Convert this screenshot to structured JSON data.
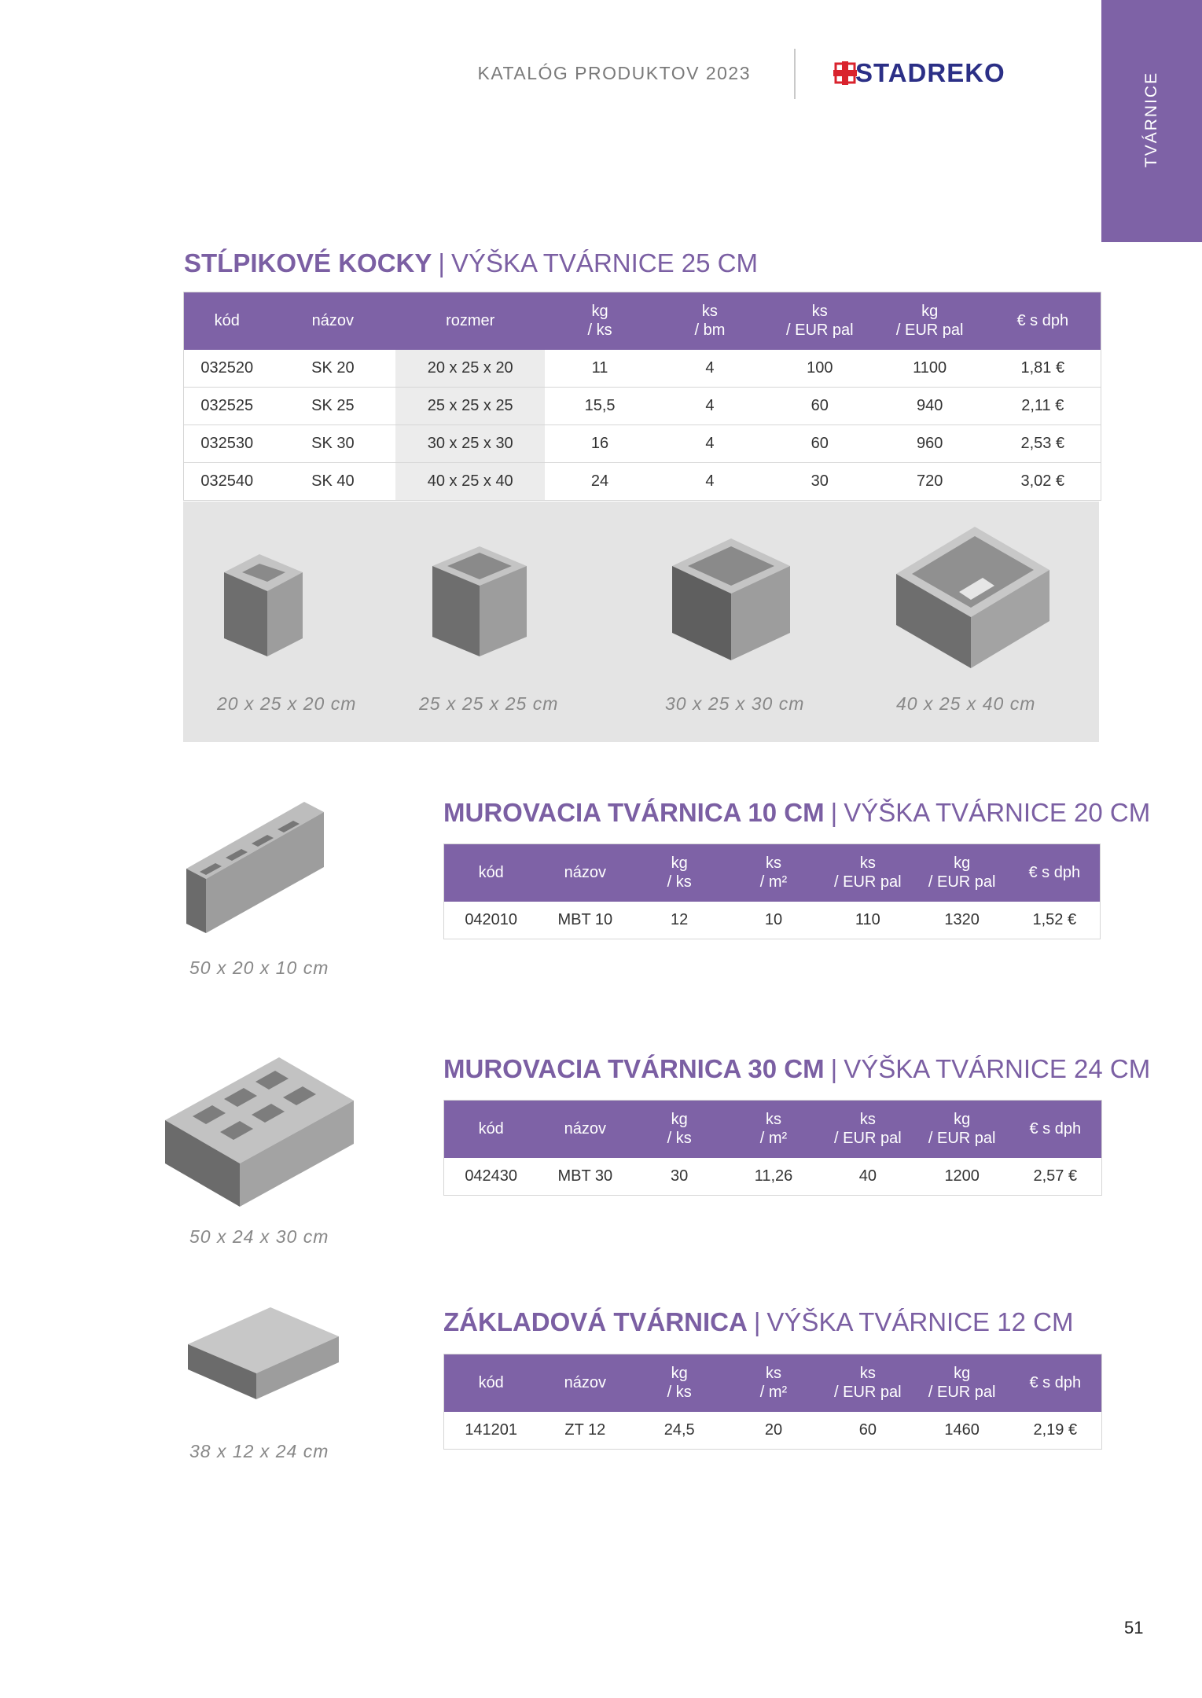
{
  "header": {
    "catalog_title": "KATALÓG PRODUKTOV 2023",
    "logo_text": "STADREKO",
    "side_tab": "TVÁRNICE"
  },
  "colors": {
    "accent": "#7e62a6",
    "logo": "#2b2f86",
    "logo_mark": "#d9232d",
    "shade": "#ececec",
    "band": "#e4e4e4"
  },
  "section1": {
    "title": "STĹPIKOVÉ KOCKY",
    "subtitle": "VÝŠKA TVÁRNICE 25 CM",
    "headers": {
      "kod": "kód",
      "nazov": "názov",
      "rozmer": "rozmer",
      "kg_ks": [
        "kg",
        "/ ks"
      ],
      "ks_bm": [
        "ks",
        "/ bm"
      ],
      "ks_pal": [
        "ks",
        "/ EUR pal"
      ],
      "kg_pal": [
        "kg",
        "/ EUR pal"
      ],
      "price": "€ s dph"
    },
    "rows": [
      [
        "032520",
        "SK 20",
        "20 x 25 x 20",
        "11",
        "4",
        "100",
        "1100",
        "1,81 €"
      ],
      [
        "032525",
        "SK 25",
        "25 x 25 x 25",
        "15,5",
        "4",
        "60",
        "940",
        "2,11 €"
      ],
      [
        "032530",
        "SK 30",
        "30 x 25 x 30",
        "16",
        "4",
        "60",
        "960",
        "2,53 €"
      ],
      [
        "032540",
        "SK 40",
        "40 x 25 x 40",
        "24",
        "4",
        "30",
        "720",
        "3,02 €"
      ]
    ],
    "images": [
      {
        "icon": "hollow-block-small-icon",
        "label": "20 x 25 x 20 cm"
      },
      {
        "icon": "hollow-block-medium-icon",
        "label": "25 x 25 x 25 cm"
      },
      {
        "icon": "hollow-block-large-icon",
        "label": "30 x 25 x 30 cm"
      },
      {
        "icon": "hollow-block-xlarge-icon",
        "label": "40 x 25 x 40 cm"
      }
    ]
  },
  "section2": {
    "title": "MUROVACIA TVÁRNICA 10 CM",
    "subtitle": "VÝŠKA TVÁRNICE 20 CM",
    "dimension": "50 x 20 x 10 cm",
    "headers": {
      "kod": "kód",
      "nazov": "názov",
      "kg_ks": [
        "kg",
        "/ ks"
      ],
      "ks_m2": [
        "ks",
        "/ m²"
      ],
      "ks_pal": [
        "ks",
        "/ EUR pal"
      ],
      "kg_pal": [
        "kg",
        "/ EUR pal"
      ],
      "price": "€ s dph"
    },
    "rows": [
      [
        "042010",
        "MBT 10",
        "12",
        "10",
        "110",
        "1320",
        "1,52 €"
      ]
    ]
  },
  "section3": {
    "title": "MUROVACIA TVÁRNICA 30 CM",
    "subtitle": "VÝŠKA TVÁRNICE 24 CM",
    "dimension": "50 x 24 x 30 cm",
    "headers": {
      "kod": "kód",
      "nazov": "názov",
      "kg_ks": [
        "kg",
        "/ ks"
      ],
      "ks_m2": [
        "ks",
        "/ m²"
      ],
      "ks_pal": [
        "ks",
        "/ EUR pal"
      ],
      "kg_pal": [
        "kg",
        "/ EUR pal"
      ],
      "price": "€ s dph"
    },
    "rows": [
      [
        "042430",
        "MBT 30",
        "30",
        "11,26",
        "40",
        "1200",
        "2,57 €"
      ]
    ]
  },
  "section4": {
    "title": "ZÁKLADOVÁ TVÁRNICA",
    "subtitle": "VÝŠKA TVÁRNICE 12 CM",
    "dimension": "38 x 12 x 24 cm",
    "headers": {
      "kod": "kód",
      "nazov": "názov",
      "kg_ks": [
        "kg",
        "/ ks"
      ],
      "ks_m2": [
        "ks",
        "/ m²"
      ],
      "ks_pal": [
        "ks",
        "/ EUR pal"
      ],
      "kg_pal": [
        "kg",
        "/ EUR pal"
      ],
      "price": "€ s dph"
    },
    "rows": [
      [
        "141201",
        "ZT 12",
        "24,5",
        "20",
        "60",
        "1460",
        "2,19 €"
      ]
    ]
  },
  "page_number": "51"
}
